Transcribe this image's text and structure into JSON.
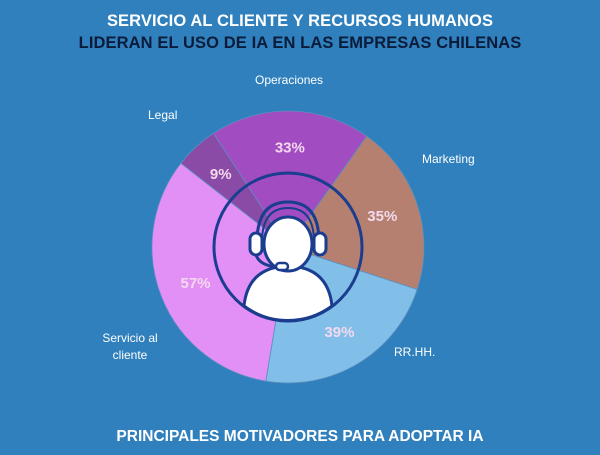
{
  "title_line1": "SERVICIO AL CLIENTE Y RECURSOS HUMANOS",
  "title_line2": "LIDERAN EL USO DE IA EN LAS EMPRESAS CHILENAS",
  "subtitle": "PRINCIPALES MOTIVADORES PARA ADOPTAR IA",
  "chart_data": {
    "type": "pie",
    "title": "SERVICIO AL CLIENTE Y RECURSOS HUMANOS LIDERAN EL USO DE IA EN LAS EMPRESAS CHILENAS",
    "unit": "%",
    "categories": [
      "Legal",
      "Operaciones",
      "Marketing",
      "RR.HH.",
      "Servicio al cliente"
    ],
    "values": [
      9,
      33,
      35,
      39,
      57
    ],
    "value_labels": [
      "9%",
      "33%",
      "35%",
      "39%",
      "57%"
    ],
    "colors": [
      "#8a4ba6",
      "#a24cc2",
      "#b5806f",
      "#82bfe8",
      "#e28ff6"
    ],
    "center_icon": "headset-person-icon"
  },
  "colors": {
    "background": "#2f80bd",
    "icon_outline": "#1a3d8f"
  }
}
